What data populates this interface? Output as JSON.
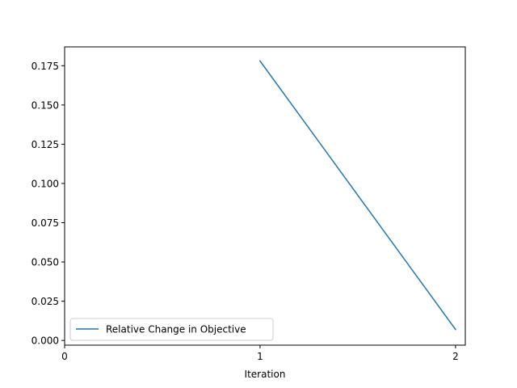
{
  "chart_data": {
    "type": "line",
    "title": "",
    "xlabel": "Iteration",
    "ylabel": "",
    "xlim": [
      0,
      2.05
    ],
    "ylim": [
      -0.003,
      0.187
    ],
    "x_ticks": [
      0,
      1,
      2
    ],
    "x_tick_labels": [
      "0",
      "1",
      "2"
    ],
    "y_ticks": [
      0.0,
      0.025,
      0.05,
      0.075,
      0.1,
      0.125,
      0.15,
      0.175
    ],
    "y_tick_labels": [
      "0.000",
      "0.025",
      "0.050",
      "0.075",
      "0.100",
      "0.125",
      "0.150",
      "0.175"
    ],
    "grid": false,
    "legend_position": "lower-left",
    "series": [
      {
        "name": "Relative Change in Objective",
        "color": "#1f77b4",
        "x": [
          1,
          2
        ],
        "y": [
          0.178,
          0.007
        ]
      }
    ]
  }
}
